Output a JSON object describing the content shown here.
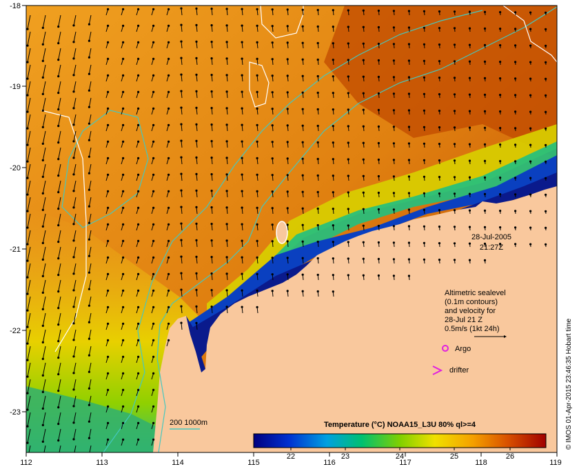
{
  "map": {
    "lon_ticks": [
      "112",
      "113",
      "114",
      "115",
      "116",
      "117",
      "118",
      "119"
    ],
    "lat_ticks": [
      "-18",
      "-19",
      "-20",
      "-21",
      "-22",
      "-23"
    ],
    "timestamp_date": "28-Jul-2005",
    "timestamp_time": "21:27Z",
    "legend_lines": [
      "Altimetric sealevel",
      "(0.1m contours)",
      "and velocity for",
      "28-Jul 21 Z",
      "0.5m/s (1kt 24h)"
    ],
    "argo_label": "Argo",
    "drifter_label": "drifter",
    "depth_label": "200  1000m",
    "colorbar_title": "Temperature (°C) NOAA15_L3U 80% ql>=4",
    "colorbar_ticks": [
      "22",
      "23",
      "24",
      "25",
      "26"
    ],
    "credit": "© IMOS 01-Apr-2015 23:46:35 Hobart time",
    "colors": {
      "land": "#f9c89d",
      "ocean_warm": "#cc5a00",
      "ocean_mid": "#f5a31a",
      "ocean_cool": "#0a1a8c",
      "depth_contour": "#44c8c0",
      "sealevel_contour": "#ffffff",
      "argo": "#e020e0",
      "drifter": "#e020e0"
    }
  }
}
